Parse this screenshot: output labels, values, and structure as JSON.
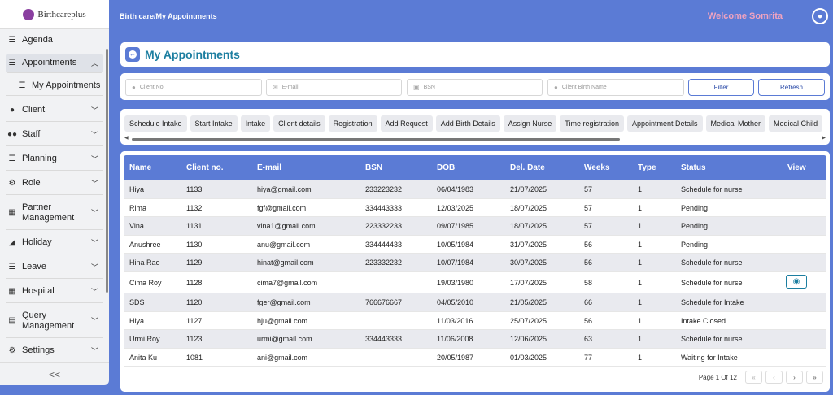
{
  "sidebar": {
    "logo_text": "Birthcareplus",
    "items": [
      {
        "label": "Agenda",
        "icon": "list-icon"
      },
      {
        "label": "Appointments",
        "icon": "list-icon",
        "chevron": "up"
      },
      {
        "label": "My Appointments",
        "icon": "list-icon"
      },
      {
        "label": "Client",
        "icon": "person-icon",
        "chevron": "down"
      },
      {
        "label": "Staff",
        "icon": "people-icon",
        "chevron": "down"
      },
      {
        "label": "Planning",
        "icon": "list-icon",
        "chevron": "down"
      },
      {
        "label": "Role",
        "icon": "role-icon",
        "chevron": "down"
      },
      {
        "label": "Partner Management",
        "icon": "building-icon",
        "chevron": "down"
      },
      {
        "label": "Holiday",
        "icon": "beach-icon",
        "chevron": "down"
      },
      {
        "label": "Leave",
        "icon": "list-icon",
        "chevron": "down"
      },
      {
        "label": "Hospital",
        "icon": "building-icon",
        "chevron": "down"
      },
      {
        "label": "Query Management",
        "icon": "document-icon",
        "chevron": "down"
      },
      {
        "label": "Settings",
        "icon": "gear-icon",
        "chevron": "down"
      }
    ],
    "collapse_label": "<<"
  },
  "header": {
    "breadcrumb": "Birth care/My Appointments",
    "welcome": "Welcome Somrita"
  },
  "page": {
    "title": "My Appointments"
  },
  "filters": {
    "client_no_placeholder": "Client No",
    "email_placeholder": "E-mail",
    "bsn_placeholder": "BSN",
    "birth_name_placeholder": "Client Birth Name",
    "filter_label": "Filter",
    "refresh_label": "Refresh"
  },
  "tabs": [
    "Schedule Intake",
    "Start Intake",
    "Intake",
    "Client details",
    "Registration",
    "Add Request",
    "Add Birth Details",
    "Assign Nurse",
    "Time registration",
    "Appointment Details",
    "Medical Mother",
    "Medical Child"
  ],
  "table": {
    "columns": [
      "Name",
      "Client no.",
      "E-mail",
      "BSN",
      "DOB",
      "Del. Date",
      "Weeks",
      "Type",
      "Status",
      "View"
    ],
    "rows": [
      [
        "Hiya",
        "1133",
        "hiya@gmail.com",
        "233223232",
        "06/04/1983",
        "21/07/2025",
        "57",
        "1",
        "Schedule for nurse"
      ],
      [
        "Rima",
        "1132",
        "fgf@gmail.com",
        "334443333",
        "12/03/2025",
        "18/07/2025",
        "57",
        "1",
        "Pending"
      ],
      [
        "Vina",
        "1131",
        "vina1@gmail.com",
        "223332233",
        "09/07/1985",
        "18/07/2025",
        "57",
        "1",
        "Pending"
      ],
      [
        "Anushree",
        "1130",
        "anu@gmail.com",
        "334444433",
        "10/05/1984",
        "31/07/2025",
        "56",
        "1",
        "Pending"
      ],
      [
        "Hina Rao",
        "1129",
        "hinat@gmail.com",
        "223332232",
        "10/07/1984",
        "30/07/2025",
        "56",
        "1",
        "Schedule for nurse"
      ],
      [
        "Cima Roy",
        "1128",
        "cima7@gmail.com",
        "",
        "19/03/1980",
        "17/07/2025",
        "58",
        "1",
        "Schedule for nurse"
      ],
      [
        "SDS",
        "1120",
        "fger@gmail.com",
        "766676667",
        "04/05/2010",
        "21/05/2025",
        "66",
        "1",
        "Schedule for Intake"
      ],
      [
        "Hiya",
        "1127",
        "hju@gmail.com",
        "",
        "11/03/2016",
        "25/07/2025",
        "56",
        "1",
        "Intake Closed"
      ],
      [
        "Urmi Roy",
        "1123",
        "urmi@gmail.com",
        "334443333",
        "11/06/2008",
        "12/06/2025",
        "63",
        "1",
        "Schedule for nurse"
      ],
      [
        "Anita Ku",
        "1081",
        "ani@gmail.com",
        "",
        "20/05/1987",
        "01/03/2025",
        "77",
        "1",
        "Waiting for Intake"
      ]
    ],
    "view_row_index": 5
  },
  "pager": {
    "text": "Page 1 Of 12",
    "first": "«",
    "prev": "‹",
    "next": "›",
    "last": "»"
  },
  "colors": {
    "accent": "#5b7bd5",
    "title": "#1c7ea0",
    "welcome": "#f0a3c0"
  }
}
